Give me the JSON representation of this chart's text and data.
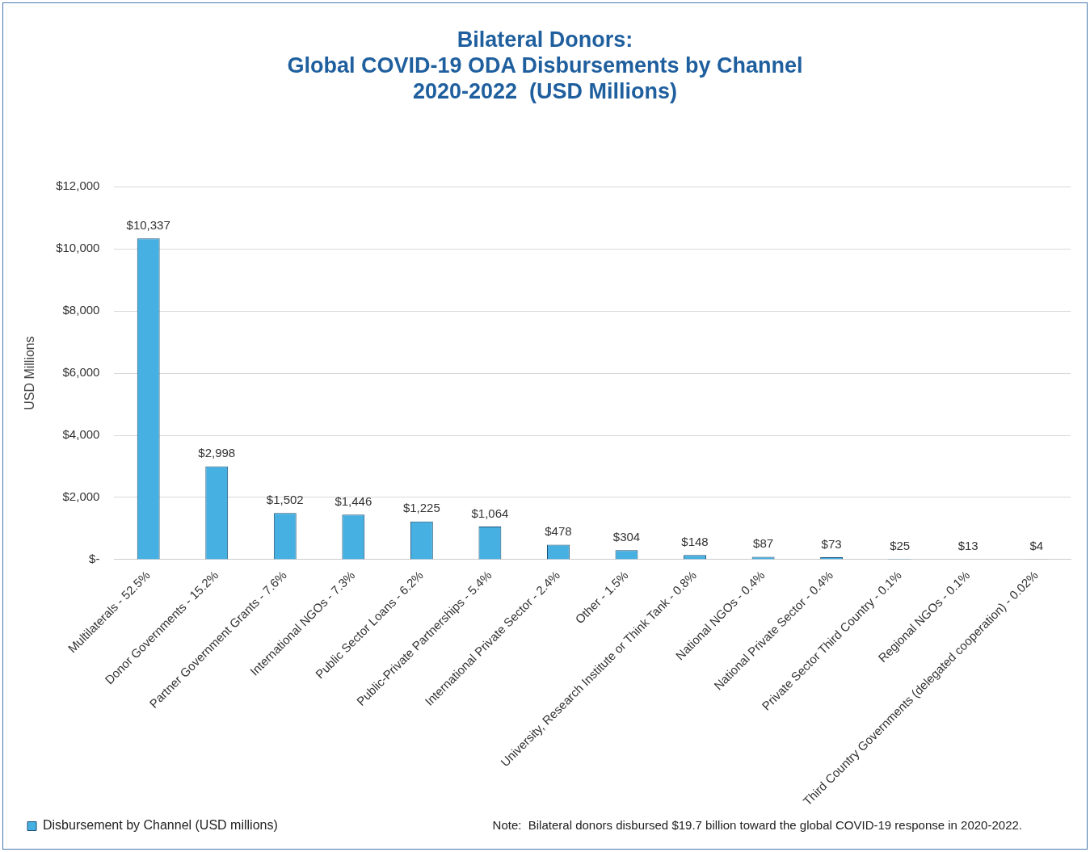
{
  "chart_data": {
    "type": "bar",
    "title": "Bilateral Donors:\nGlobal COVID-19 ODA Disbursements by Channel\n2020-2022  (USD Millions)",
    "ylabel": "USD Millions",
    "categories": [
      "Multilaterals - 52.5%",
      "Donor Governments - 15.2%",
      "Partner Government Grants - 7.6%",
      "International NGOs - 7.3%",
      "Public Sector Loans - 6.2%",
      "Public-Private Partnerships - 5.4%",
      "International Private Sector - 2.4%",
      "Other - 1.5%",
      "University, Research Institute or Think Tank - 0.8%",
      "National NGOs - 0.4%",
      "National Private Sector - 0.4%",
      "Private Sector Third Country - 0.1%",
      "Regional NGOs - 0.1%",
      "Third Country Governments (delegated cooperation) - 0.02%"
    ],
    "series": [
      {
        "name": "Disbursement by Channel (USD millions)",
        "color": "#45b0e1",
        "values": [
          10337,
          2998,
          1502,
          1446,
          1225,
          1064,
          478,
          304,
          148,
          87,
          73,
          25,
          13,
          4
        ],
        "value_labels": [
          "$10,337",
          "$2,998",
          "$1,502",
          "$1,446",
          "$1,225",
          "$1,064",
          "$478",
          "$304",
          "$148",
          "$87",
          "$73",
          "$25",
          "$13",
          "$4"
        ]
      }
    ],
    "ylim": [
      0,
      12000
    ],
    "yticks": [
      {
        "value": 0,
        "label": "$-"
      },
      {
        "value": 2000,
        "label": "$2,000"
      },
      {
        "value": 4000,
        "label": "$4,000"
      },
      {
        "value": 6000,
        "label": "$6,000"
      },
      {
        "value": 8000,
        "label": "$8,000"
      },
      {
        "value": 10000,
        "label": "$10,000"
      },
      {
        "value": 12000,
        "label": "$12,000"
      }
    ],
    "grid": "y",
    "legend": "bottom left",
    "annotations": [
      "Note:  Bilateral donors disbursed $19.7 billion toward the global COVID-19 response in 2020-2022."
    ]
  }
}
